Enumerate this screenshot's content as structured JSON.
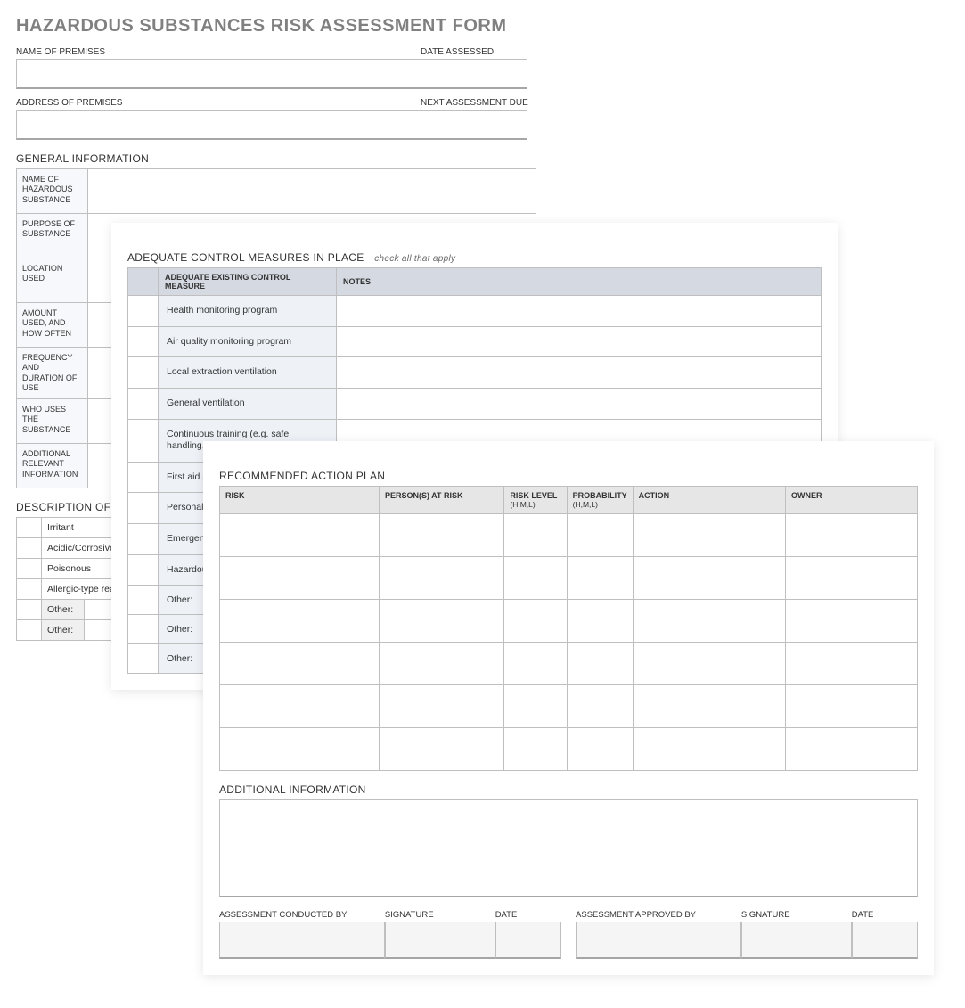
{
  "title": "HAZARDOUS SUBSTANCES RISK ASSESSMENT FORM",
  "header": {
    "name_of_premises_label": "NAME OF PREMISES",
    "date_assessed_label": "DATE ASSESSED",
    "address_of_premises_label": "ADDRESS OF PREMISES",
    "next_assessment_due_label": "NEXT ASSESSMENT DUE"
  },
  "general_info": {
    "section_title": "GENERAL INFORMATION",
    "rows": [
      "NAME OF HAZARDOUS SUBSTANCE",
      "PURPOSE OF SUBSTANCE",
      "LOCATION USED",
      "AMOUNT USED, AND HOW OFTEN",
      "FREQUENCY AND DURATION OF USE",
      "WHO USES THE SUBSTANCE",
      "ADDITIONAL RELEVANT INFORMATION"
    ]
  },
  "hazards": {
    "section_title": "DESCRIPTION OF POTENTIAL HAZARDS",
    "items": [
      "Irritant",
      "Acidic/Corrosive",
      "Poisonous",
      "Allergic-type reaction"
    ],
    "other_label": "Other:"
  },
  "controls": {
    "section_title": "ADEQUATE CONTROL MEASURES IN PLACE",
    "subnote": "check all that apply",
    "col_measure": "ADEQUATE EXISTING CONTROL MEASURE",
    "col_notes": "NOTES",
    "items": [
      "Health monitoring program",
      "Air quality monitoring program",
      "Local extraction ventilation",
      "General ventilation",
      "Continuous training (e.g. safe handling, PPE, hazards, first aid)",
      "First aid provisions",
      "Personal protective equipment",
      "Emergency procedures",
      "Hazardous substance storage"
    ],
    "other_label": "Other:"
  },
  "action_plan": {
    "section_title": "RECOMMENDED ACTION PLAN",
    "cols": {
      "risk": "RISK",
      "persons": "PERSON(S) AT RISK",
      "risk_level": "RISK LEVEL",
      "risk_level_sub": "(H,M,L)",
      "probability": "PROBABILITY",
      "probability_sub": "(H,M,L)",
      "action": "ACTION",
      "owner": "OWNER"
    },
    "row_count": 6
  },
  "additional": {
    "section_title": "ADDITIONAL INFORMATION"
  },
  "signoff": {
    "conducted_by": "ASSESSMENT CONDUCTED BY",
    "signature": "SIGNATURE",
    "date": "DATE",
    "approved_by": "ASSESSMENT APPROVED BY"
  },
  "colors": {
    "title_grey": "#808080",
    "border": "#bfbfbf",
    "blue_header": "#d4d9e2",
    "blue_cell": "#eef2f7",
    "grey_header": "#e6e6e6",
    "grey_fill": "#f5f5f5"
  }
}
